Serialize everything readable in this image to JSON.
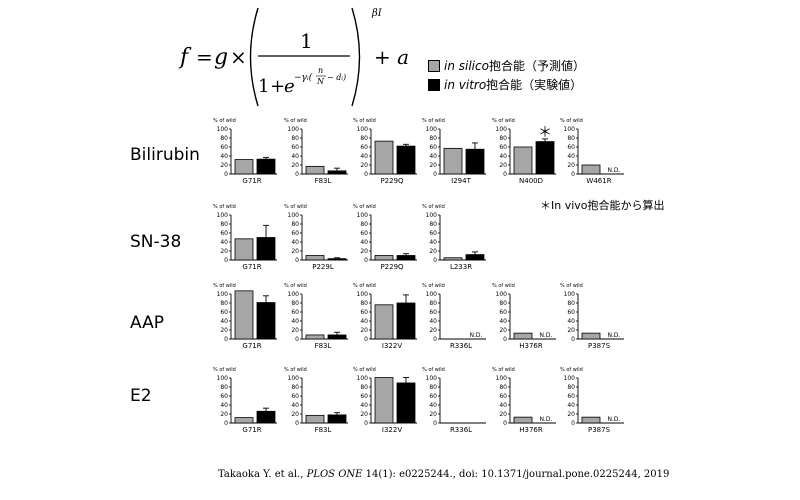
{
  "formula": {
    "lhs": "f",
    "eq": "=",
    "g": "g",
    "times": "×",
    "one": "1",
    "denom_one": "1",
    "plus1": "+",
    "e": "e",
    "exp_inner": "−γᵢ(",
    "exp_n": "n",
    "exp_N": "N",
    "exp_d": "− dᵢ)",
    "power": "βI",
    "plus_a": "+ a"
  },
  "legend": {
    "silico_italic": "in silico",
    "silico_rest": "抱合能（予測値）",
    "vitro_italic": "in vitro",
    "vitro_rest": "抱合能（実験値）",
    "silico_color": "#a6a6a6",
    "vitro_color": "#000000"
  },
  "note": "＊In vivo抱合能から算出",
  "citation": {
    "authors": "Takaoka Y. et al., ",
    "journal": "PLOS ONE",
    "rest": " 14(1): e0225244., doi: 10.1371/journal.pone.0225244, 2019"
  },
  "chart_data": {
    "type": "bar",
    "ylabel": "% of wild",
    "ylim": [
      0,
      100
    ],
    "yticks": [
      0,
      20,
      40,
      60,
      80,
      100
    ],
    "series_names": [
      "in silico抱合能（予測値）",
      "in vitro抱合能（実験値）"
    ],
    "rows": [
      {
        "label": "Bilirubin",
        "panels": [
          {
            "variant": "G71R",
            "silico": 32,
            "vitro": 33,
            "err": 4
          },
          {
            "variant": "F83L",
            "silico": 17,
            "vitro": 7,
            "err": 6
          },
          {
            "variant": "P229Q",
            "silico": 73,
            "vitro": 62,
            "err": 4
          },
          {
            "variant": "I294T",
            "silico": 57,
            "vitro": 55,
            "err": 14
          },
          {
            "variant": "N400D",
            "silico": 60,
            "vitro": 72,
            "err": 6,
            "asterisk": "＊"
          },
          {
            "variant": "W461R",
            "silico": 20,
            "vitro": null,
            "nd": "N.D."
          }
        ]
      },
      {
        "label": "SN-38",
        "panels": [
          {
            "variant": "G71R",
            "silico": 47,
            "vitro": 50,
            "err": 27
          },
          {
            "variant": "P229L",
            "silico": 10,
            "vitro": 3,
            "err": 2
          },
          {
            "variant": "P229Q",
            "silico": 10,
            "vitro": 10,
            "err": 4
          },
          {
            "variant": "L233R",
            "silico": 5,
            "vitro": 12,
            "err": 6
          }
        ]
      },
      {
        "label": "AAP",
        "panels": [
          {
            "variant": "G71R",
            "silico": 107,
            "vitro": 81,
            "err": 15
          },
          {
            "variant": "F83L",
            "silico": 9,
            "vitro": 9,
            "err": 6
          },
          {
            "variant": "I322V",
            "silico": 76,
            "vitro": 80,
            "err": 18
          },
          {
            "variant": "R336L",
            "silico": null,
            "vitro": null,
            "nd": "N.D."
          },
          {
            "variant": "H376R",
            "silico": 13,
            "vitro": null,
            "nd": "N.D."
          },
          {
            "variant": "P387S",
            "silico": 13,
            "vitro": null,
            "nd": "N.D."
          }
        ]
      },
      {
        "label": "E2",
        "panels": [
          {
            "variant": "G71R",
            "silico": 12,
            "vitro": 26,
            "err": 7
          },
          {
            "variant": "F83L",
            "silico": 17,
            "vitro": 18,
            "err": 5
          },
          {
            "variant": "I322V",
            "silico": 101,
            "vitro": 89,
            "err": 12
          },
          {
            "variant": "R336L",
            "silico": null,
            "vitro": null
          },
          {
            "variant": "H376R",
            "silico": 13,
            "vitro": null,
            "nd": "N.D."
          },
          {
            "variant": "P387S",
            "silico": 13,
            "vitro": null,
            "nd": "N.D."
          }
        ]
      }
    ]
  }
}
